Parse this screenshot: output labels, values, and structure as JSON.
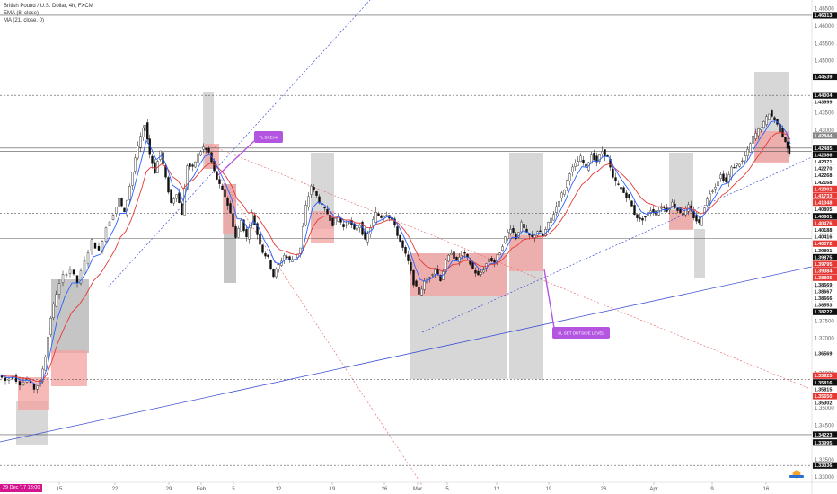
{
  "header": {
    "title": "British Pound / U.S. Dollar, 4h, FXCM",
    "indicators": [
      "EMA (8, close)",
      "MA (21, close, 0)"
    ]
  },
  "date_badge": "29 Dec '17   13:00",
  "callouts": [
    {
      "text": "TL BREAK"
    },
    {
      "text": "SL SET OUTSIDE LEVEL"
    }
  ],
  "colors": {
    "ema": "#2962ff",
    "ma": "#e53935",
    "up_candle": "#000000",
    "down_candle": "#000000",
    "zone_red": "#f4a0a0",
    "zone_gray": "#bdbdbd",
    "trend_blue": "#3f51d4",
    "trend_red": "#e57373",
    "callout": "#b455e0",
    "label_red": "#e53935",
    "label_black": "#111111"
  },
  "chart_data": {
    "type": "line",
    "symbol": "GBPUSD",
    "timeframe": "4h",
    "x_ticks": [
      "15",
      "22",
      "29",
      "Feb",
      "5",
      "12",
      "19",
      "26",
      "Mar",
      "5",
      "12",
      "19",
      "26",
      "Apr",
      "9",
      "16"
    ],
    "y_ticks": [
      "1.46500",
      "1.46000",
      "1.45500",
      "1.45000",
      "1.44500",
      "1.44000",
      "1.43500",
      "1.43000",
      "1.42500",
      "1.42000",
      "1.41500",
      "1.41000",
      "1.40500",
      "1.40000",
      "1.39500",
      "1.39000",
      "1.38500",
      "1.38000",
      "1.37500",
      "1.37000",
      "1.36500",
      "1.36000",
      "1.35500",
      "1.35000",
      "1.34500",
      "1.34000",
      "1.33500",
      "1.33000"
    ],
    "ylim": [
      1.3285,
      1.467
    ],
    "price_labels": [
      {
        "text": "1.46313",
        "color": "black"
      },
      {
        "text": "1.44539",
        "color": "black"
      },
      {
        "text": "1.44004",
        "color": "black"
      },
      {
        "text": "1.43999",
        "color": "white"
      },
      {
        "text": "1.42844",
        "color": "gray"
      },
      {
        "text": "1.42485",
        "color": "black"
      },
      {
        "text": "1.42386",
        "color": "black"
      },
      {
        "text": "1.42371",
        "color": "white"
      },
      {
        "text": "1.42270",
        "color": "white"
      },
      {
        "text": "1.42268",
        "color": "white"
      },
      {
        "text": "1.42168",
        "color": "white"
      },
      {
        "text": "1.42002",
        "color": "red"
      },
      {
        "text": "1.41733",
        "color": "red"
      },
      {
        "text": "1.41348",
        "color": "red"
      },
      {
        "text": "1.40805",
        "color": "white"
      },
      {
        "text": "1.40601",
        "color": "black"
      },
      {
        "text": "1.40476",
        "color": "red"
      },
      {
        "text": "1.40188",
        "color": "white"
      },
      {
        "text": "1.40416",
        "color": "white"
      },
      {
        "text": "1.40072",
        "color": "red"
      },
      {
        "text": "1.39891",
        "color": "white"
      },
      {
        "text": "1.39875",
        "color": "black"
      },
      {
        "text": "1.39795",
        "color": "red"
      },
      {
        "text": "1.39384",
        "color": "red"
      },
      {
        "text": "1.38895",
        "color": "red"
      },
      {
        "text": "1.38669",
        "color": "white"
      },
      {
        "text": "1.38667",
        "color": "white"
      },
      {
        "text": "1.38666",
        "color": "white"
      },
      {
        "text": "1.38553",
        "color": "white"
      },
      {
        "text": "1.38222",
        "color": "black"
      },
      {
        "text": "1.36569",
        "color": "white"
      },
      {
        "text": "1.35925",
        "color": "red"
      },
      {
        "text": "1.35816",
        "color": "black"
      },
      {
        "text": "1.35815",
        "color": "white"
      },
      {
        "text": "1.35650",
        "color": "red"
      },
      {
        "text": "1.35302",
        "color": "white"
      },
      {
        "text": "1.34223",
        "color": "black"
      },
      {
        "text": "1.33995",
        "color": "black"
      },
      {
        "text": "1.33336",
        "color": "black"
      }
    ],
    "horizontal_levels": [
      {
        "price": 1.46313,
        "style": "solid"
      },
      {
        "price": 1.44004,
        "style": "dashed"
      },
      {
        "price": 1.42485,
        "style": "solid"
      },
      {
        "price": 1.42386,
        "style": "solid"
      },
      {
        "price": 1.40601,
        "style": "dashed"
      },
      {
        "price": 1.39875,
        "style": "solid"
      },
      {
        "price": 1.35816,
        "style": "dashed"
      },
      {
        "price": 1.34223,
        "style": "solid"
      },
      {
        "price": 1.33336,
        "style": "dashed"
      }
    ],
    "price_path": [
      {
        "t": 0,
        "p": 1.3595
      },
      {
        "t": 8,
        "p": 1.3578
      },
      {
        "t": 16,
        "p": 1.359
      },
      {
        "t": 24,
        "p": 1.357
      },
      {
        "t": 32,
        "p": 1.358
      },
      {
        "t": 40,
        "p": 1.3555
      },
      {
        "t": 46,
        "p": 1.3575
      },
      {
        "t": 52,
        "p": 1.365
      },
      {
        "t": 58,
        "p": 1.376
      },
      {
        "t": 64,
        "p": 1.383
      },
      {
        "t": 72,
        "p": 1.388
      },
      {
        "t": 80,
        "p": 1.39
      },
      {
        "t": 88,
        "p": 1.386
      },
      {
        "t": 96,
        "p": 1.392
      },
      {
        "t": 104,
        "p": 1.398
      },
      {
        "t": 112,
        "p": 1.395
      },
      {
        "t": 120,
        "p": 1.402
      },
      {
        "t": 128,
        "p": 1.406
      },
      {
        "t": 134,
        "p": 1.41
      },
      {
        "t": 140,
        "p": 1.406
      },
      {
        "t": 146,
        "p": 1.414
      },
      {
        "t": 152,
        "p": 1.422
      },
      {
        "t": 158,
        "p": 1.428
      },
      {
        "t": 163,
        "p": 1.432
      },
      {
        "t": 168,
        "p": 1.423
      },
      {
        "t": 174,
        "p": 1.418
      },
      {
        "t": 180,
        "p": 1.424
      },
      {
        "t": 186,
        "p": 1.416
      },
      {
        "t": 192,
        "p": 1.409
      },
      {
        "t": 198,
        "p": 1.412
      },
      {
        "t": 204,
        "p": 1.406
      },
      {
        "t": 210,
        "p": 1.42
      },
      {
        "t": 216,
        "p": 1.419
      },
      {
        "t": 222,
        "p": 1.423
      },
      {
        "t": 228,
        "p": 1.425
      },
      {
        "t": 234,
        "p": 1.4235
      },
      {
        "t": 240,
        "p": 1.418
      },
      {
        "t": 246,
        "p": 1.414
      },
      {
        "t": 252,
        "p": 1.411
      },
      {
        "t": 258,
        "p": 1.406
      },
      {
        "t": 264,
        "p": 1.399
      },
      {
        "t": 270,
        "p": 1.404
      },
      {
        "t": 276,
        "p": 1.399
      },
      {
        "t": 282,
        "p": 1.406
      },
      {
        "t": 288,
        "p": 1.4
      },
      {
        "t": 294,
        "p": 1.395
      },
      {
        "t": 300,
        "p": 1.393
      },
      {
        "t": 306,
        "p": 1.388
      },
      {
        "t": 312,
        "p": 1.391
      },
      {
        "t": 318,
        "p": 1.394
      },
      {
        "t": 324,
        "p": 1.3925
      },
      {
        "t": 330,
        "p": 1.393
      },
      {
        "t": 336,
        "p": 1.396
      },
      {
        "t": 342,
        "p": 1.408
      },
      {
        "t": 348,
        "p": 1.414
      },
      {
        "t": 354,
        "p": 1.411
      },
      {
        "t": 360,
        "p": 1.408
      },
      {
        "t": 366,
        "p": 1.406
      },
      {
        "t": 372,
        "p": 1.403
      },
      {
        "t": 378,
        "p": 1.405
      },
      {
        "t": 384,
        "p": 1.402
      },
      {
        "t": 390,
        "p": 1.404
      },
      {
        "t": 396,
        "p": 1.401
      },
      {
        "t": 402,
        "p": 1.403
      },
      {
        "t": 408,
        "p": 1.398
      },
      {
        "t": 414,
        "p": 1.402
      },
      {
        "t": 420,
        "p": 1.406
      },
      {
        "t": 426,
        "p": 1.405
      },
      {
        "t": 432,
        "p": 1.406
      },
      {
        "t": 438,
        "p": 1.404
      },
      {
        "t": 444,
        "p": 1.4
      },
      {
        "t": 450,
        "p": 1.396
      },
      {
        "t": 456,
        "p": 1.392
      },
      {
        "t": 462,
        "p": 1.386
      },
      {
        "t": 468,
        "p": 1.383
      },
      {
        "t": 474,
        "p": 1.386
      },
      {
        "t": 480,
        "p": 1.388
      },
      {
        "t": 486,
        "p": 1.39
      },
      {
        "t": 492,
        "p": 1.387
      },
      {
        "t": 498,
        "p": 1.392
      },
      {
        "t": 504,
        "p": 1.395
      },
      {
        "t": 510,
        "p": 1.392
      },
      {
        "t": 516,
        "p": 1.395
      },
      {
        "t": 522,
        "p": 1.393
      },
      {
        "t": 528,
        "p": 1.39
      },
      {
        "t": 534,
        "p": 1.388
      },
      {
        "t": 540,
        "p": 1.39
      },
      {
        "t": 546,
        "p": 1.393
      },
      {
        "t": 552,
        "p": 1.392
      },
      {
        "t": 558,
        "p": 1.395
      },
      {
        "t": 564,
        "p": 1.399
      },
      {
        "t": 570,
        "p": 1.402
      },
      {
        "t": 576,
        "p": 1.399
      },
      {
        "t": 582,
        "p": 1.403
      },
      {
        "t": 588,
        "p": 1.4
      },
      {
        "t": 594,
        "p": 1.399
      },
      {
        "t": 600,
        "p": 1.401
      },
      {
        "t": 606,
        "p": 1.3995
      },
      {
        "t": 612,
        "p": 1.403
      },
      {
        "t": 618,
        "p": 1.406
      },
      {
        "t": 624,
        "p": 1.41
      },
      {
        "t": 630,
        "p": 1.413
      },
      {
        "t": 636,
        "p": 1.418
      },
      {
        "t": 642,
        "p": 1.42
      },
      {
        "t": 648,
        "p": 1.422
      },
      {
        "t": 654,
        "p": 1.419
      },
      {
        "t": 660,
        "p": 1.423
      },
      {
        "t": 666,
        "p": 1.421
      },
      {
        "t": 672,
        "p": 1.424
      },
      {
        "t": 678,
        "p": 1.422
      },
      {
        "t": 684,
        "p": 1.416
      },
      {
        "t": 690,
        "p": 1.414
      },
      {
        "t": 696,
        "p": 1.412
      },
      {
        "t": 702,
        "p": 1.41
      },
      {
        "t": 708,
        "p": 1.406
      },
      {
        "t": 714,
        "p": 1.404
      },
      {
        "t": 720,
        "p": 1.405
      },
      {
        "t": 726,
        "p": 1.407
      },
      {
        "t": 732,
        "p": 1.406
      },
      {
        "t": 738,
        "p": 1.408
      },
      {
        "t": 744,
        "p": 1.407
      },
      {
        "t": 750,
        "p": 1.409
      },
      {
        "t": 756,
        "p": 1.407
      },
      {
        "t": 762,
        "p": 1.406
      },
      {
        "t": 768,
        "p": 1.408
      },
      {
        "t": 774,
        "p": 1.405
      },
      {
        "t": 780,
        "p": 1.403
      },
      {
        "t": 786,
        "p": 1.408
      },
      {
        "t": 792,
        "p": 1.412
      },
      {
        "t": 798,
        "p": 1.414
      },
      {
        "t": 804,
        "p": 1.417
      },
      {
        "t": 810,
        "p": 1.415
      },
      {
        "t": 816,
        "p": 1.419
      },
      {
        "t": 822,
        "p": 1.42
      },
      {
        "t": 828,
        "p": 1.421
      },
      {
        "t": 834,
        "p": 1.424
      },
      {
        "t": 840,
        "p": 1.428
      },
      {
        "t": 846,
        "p": 1.43
      },
      {
        "t": 852,
        "p": 1.432
      },
      {
        "t": 858,
        "p": 1.435
      },
      {
        "t": 864,
        "p": 1.433
      },
      {
        "t": 870,
        "p": 1.43
      },
      {
        "t": 876,
        "p": 1.427
      },
      {
        "t": 880,
        "p": 1.423
      }
    ]
  }
}
